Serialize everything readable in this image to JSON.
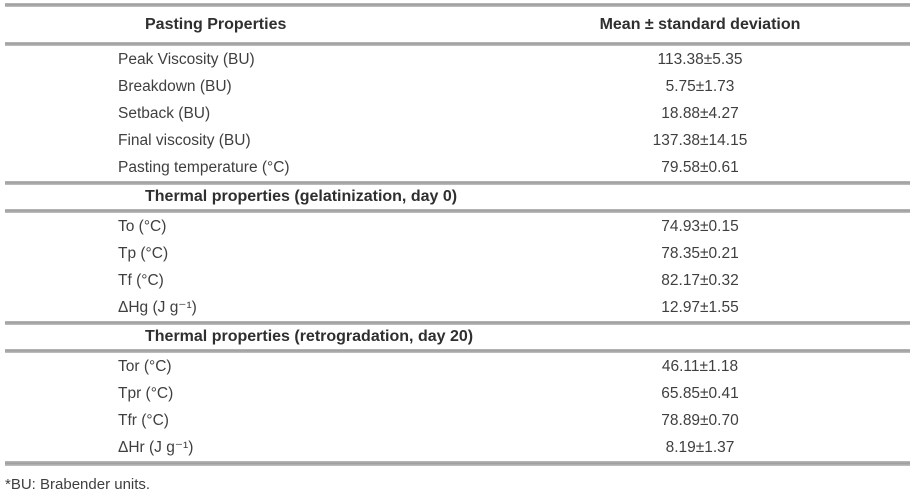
{
  "table": {
    "header": {
      "col1": "Pasting Properties",
      "col2": "Mean ± standard deviation"
    },
    "sections": [
      {
        "title": "",
        "rows": [
          {
            "label": "Peak Viscosity (BU)",
            "value": "113.38±5.35"
          },
          {
            "label": "Breakdown (BU)",
            "value": "5.75±1.73"
          },
          {
            "label": "Setback (BU)",
            "value": "18.88±4.27"
          },
          {
            "label": "Final viscosity (BU)",
            "value": "137.38±14.15"
          },
          {
            "label": "Pasting temperature (°C)",
            "value": "79.58±0.61"
          }
        ]
      },
      {
        "title": "Thermal properties (gelatinization, day 0)",
        "rows": [
          {
            "label": "To (°C)",
            "value": "74.93±0.15"
          },
          {
            "label": "Tp (°C)",
            "value": "78.35±0.21"
          },
          {
            "label": "Tf (°C)",
            "value": "82.17±0.32"
          },
          {
            "label": "ΔHg (J g⁻¹)",
            "value": "12.97±1.55"
          }
        ]
      },
      {
        "title": "Thermal properties (retrogradation, day 20)",
        "rows": [
          {
            "label": "Tor (°C)",
            "value": "46.11±1.18"
          },
          {
            "label": "Tpr (°C)",
            "value": "65.85±0.41"
          },
          {
            "label": "Tfr (°C)",
            "value": "78.89±0.70"
          },
          {
            "label": "ΔHr (J g⁻¹)",
            "value": "8.19±1.37"
          }
        ]
      }
    ],
    "footnote": "*BU: Brabender units."
  }
}
